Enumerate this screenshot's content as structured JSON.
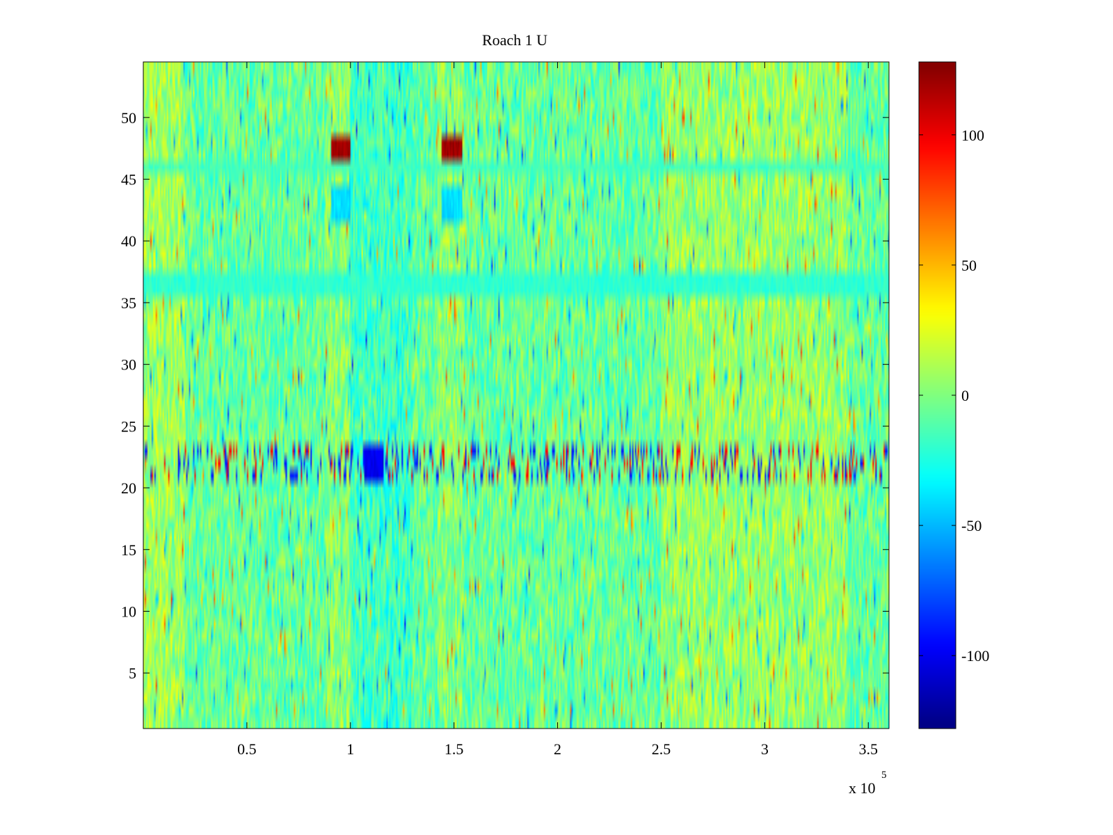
{
  "chart_data": {
    "type": "heatmap",
    "title": "Roach 1 U",
    "xlabel": "",
    "ylabel": "",
    "x_multiplier_label": "x 10",
    "x_multiplier_exponent": "5",
    "xlim": [
      0,
      3.6
    ],
    "ylim": [
      0.5,
      54.5
    ],
    "x_ticks": [
      0.5,
      1,
      1.5,
      2,
      2.5,
      3,
      3.5
    ],
    "x_tick_labels": [
      "0.5",
      "1",
      "1.5",
      "2",
      "2.5",
      "3",
      "3.5"
    ],
    "y_ticks": [
      5,
      10,
      15,
      20,
      25,
      30,
      35,
      40,
      45,
      50
    ],
    "y_tick_labels": [
      "5",
      "10",
      "15",
      "20",
      "25",
      "30",
      "35",
      "40",
      "45",
      "50"
    ],
    "n_rows": 54,
    "colormap": "jet",
    "colorbar": {
      "range": [
        -128,
        128
      ],
      "ticks": [
        -100,
        -50,
        0,
        50,
        100
      ],
      "tick_labels": [
        "-100",
        "-50",
        "0",
        "50",
        "100"
      ],
      "placement": "right"
    },
    "features": [
      {
        "rows": [
          47,
          48
        ],
        "x_range": [
          0.91,
          1.0
        ],
        "value": 120
      },
      {
        "rows": [
          47,
          48
        ],
        "x_range": [
          1.44,
          1.54
        ],
        "value": 120
      },
      {
        "rows": [
          42,
          44
        ],
        "x_range": [
          0.91,
          1.0
        ],
        "value": -40
      },
      {
        "rows": [
          42,
          44
        ],
        "x_range": [
          1.44,
          1.54
        ],
        "value": -40
      },
      {
        "rows": [
          21,
          23
        ],
        "x_range": [
          0.0,
          3.6
        ],
        "value": -90,
        "note_style": "striped"
      },
      {
        "rows": [
          21,
          23
        ],
        "x_range": [
          1.07,
          1.16
        ],
        "value": -100
      },
      {
        "rows": [
          36,
          37
        ],
        "x_range": [
          0.0,
          3.6
        ],
        "value": -20
      },
      {
        "rows": [
          46,
          46
        ],
        "x_range": [
          0.0,
          3.6
        ],
        "value": -15
      }
    ]
  }
}
